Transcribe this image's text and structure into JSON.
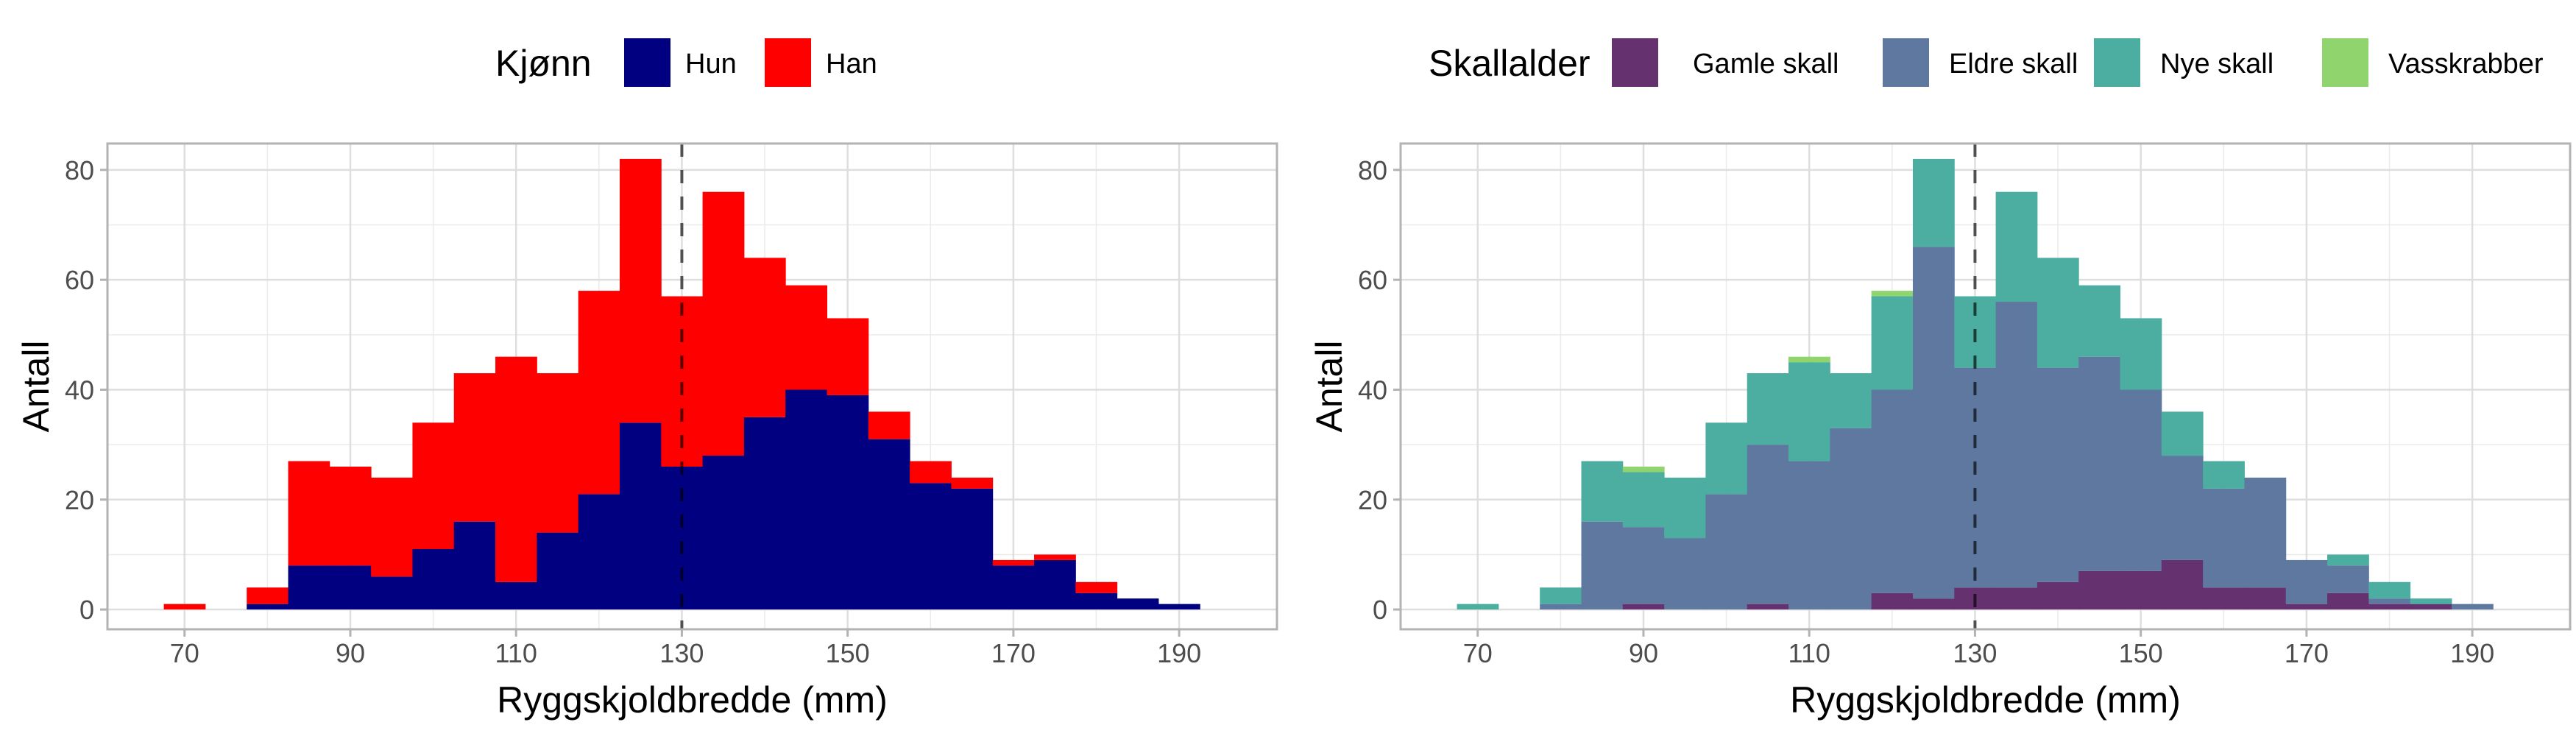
{
  "chart_data": [
    {
      "type": "bar",
      "stacked": true,
      "xlabel": "Ryggskjoldbredde (mm)",
      "ylabel": "Antall",
      "xlim": [
        60.7,
        201.8
      ],
      "ylim": [
        -3.6,
        84.8
      ],
      "xticks": [
        70,
        90,
        110,
        130,
        150,
        170,
        190
      ],
      "yticks": [
        0,
        20,
        40,
        60,
        80
      ],
      "bin_width": 5,
      "vline": 130,
      "grid": true,
      "legend": {
        "title": "Kjønn",
        "placement": "top"
      },
      "x": [
        70,
        75,
        80,
        85,
        90,
        95,
        100,
        105,
        110,
        115,
        120,
        125,
        130,
        135,
        140,
        145,
        150,
        155,
        160,
        165,
        170,
        175,
        180,
        185,
        190
      ],
      "series": [
        {
          "name": "Hun",
          "color": "#000080",
          "values": [
            0,
            0,
            1,
            8,
            8,
            6,
            11,
            16,
            5,
            14,
            21,
            34,
            26,
            28,
            35,
            40,
            39,
            31,
            23,
            22,
            8,
            9,
            3,
            2,
            1
          ]
        },
        {
          "name": "Han",
          "color": "#FF0000",
          "values": [
            1,
            0,
            3,
            19,
            18,
            18,
            23,
            27,
            41,
            29,
            37,
            48,
            31,
            48,
            29,
            19,
            14,
            5,
            4,
            2,
            1,
            1,
            2,
            0,
            0
          ]
        }
      ]
    },
    {
      "type": "bar",
      "stacked": true,
      "xlabel": "Ryggskjoldbredde (mm)",
      "ylabel": "Antall",
      "xlim": [
        60.7,
        201.8
      ],
      "ylim": [
        -3.6,
        84.8
      ],
      "xticks": [
        70,
        90,
        110,
        130,
        150,
        170,
        190
      ],
      "yticks": [
        0,
        20,
        40,
        60,
        80
      ],
      "bin_width": 5,
      "vline": 130,
      "grid": true,
      "legend": {
        "title": "Skallalder",
        "placement": "top"
      },
      "x": [
        70,
        75,
        80,
        85,
        90,
        95,
        100,
        105,
        110,
        115,
        120,
        125,
        130,
        135,
        140,
        145,
        150,
        155,
        160,
        165,
        170,
        175,
        180,
        185,
        190
      ],
      "series": [
        {
          "name": "Gamle skall",
          "color": "#65316F",
          "values": [
            0,
            0,
            0,
            0,
            1,
            0,
            0,
            1,
            0,
            0,
            3,
            2,
            4,
            4,
            5,
            7,
            7,
            9,
            4,
            4,
            1,
            3,
            1,
            1,
            0
          ]
        },
        {
          "name": "Eldre skall",
          "color": "#5F78A0",
          "values": [
            0,
            0,
            1,
            16,
            14,
            13,
            21,
            29,
            27,
            33,
            37,
            64,
            40,
            52,
            39,
            39,
            33,
            19,
            18,
            20,
            8,
            5,
            1,
            0,
            1
          ]
        },
        {
          "name": "Nye skall",
          "color": "#4BAEA0",
          "values": [
            1,
            0,
            3,
            11,
            10,
            11,
            13,
            13,
            18,
            10,
            17,
            16,
            13,
            20,
            20,
            13,
            13,
            8,
            5,
            0,
            0,
            2,
            3,
            1,
            0
          ]
        },
        {
          "name": "Vasskrabber",
          "color": "#8FD46C",
          "values": [
            0,
            0,
            0,
            0,
            1,
            0,
            0,
            0,
            1,
            0,
            1,
            0,
            0,
            0,
            0,
            0,
            0,
            0,
            0,
            0,
            0,
            0,
            0,
            0,
            0
          ]
        }
      ]
    }
  ]
}
